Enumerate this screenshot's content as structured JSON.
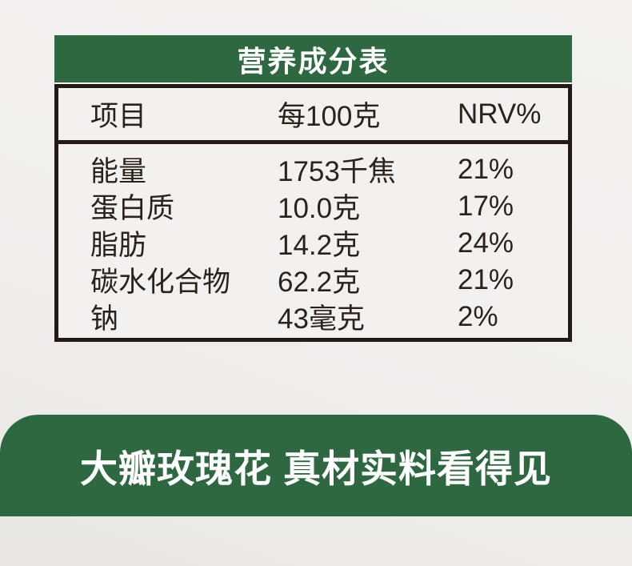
{
  "nutrition_table": {
    "title": "营养成分表",
    "header": {
      "item": "项目",
      "per_100g": "每100克",
      "nrv": "NRV%"
    },
    "rows": [
      {
        "item": "能量",
        "amount": "1753千焦",
        "nrv": "21%"
      },
      {
        "item": "蛋白质",
        "amount": "10.0克",
        "nrv": "17%"
      },
      {
        "item": "脂肪",
        "amount": "14.2克",
        "nrv": "24%"
      },
      {
        "item": "碳水化合物",
        "amount": "62.2克",
        "nrv": "21%"
      },
      {
        "item": "钠",
        "amount": "43毫克",
        "nrv": "2%"
      }
    ],
    "colors": {
      "header_green": "#2e6841",
      "border_dark": "#231a15",
      "table_bg": "#f2f1f0",
      "text_dark": "#2b221c"
    }
  },
  "banner": {
    "text": "大瓣玫瑰花 真材实料看得见",
    "bg": "#2e6841",
    "text_color": "#ffffff"
  },
  "page": {
    "bg": "#f0efee"
  }
}
